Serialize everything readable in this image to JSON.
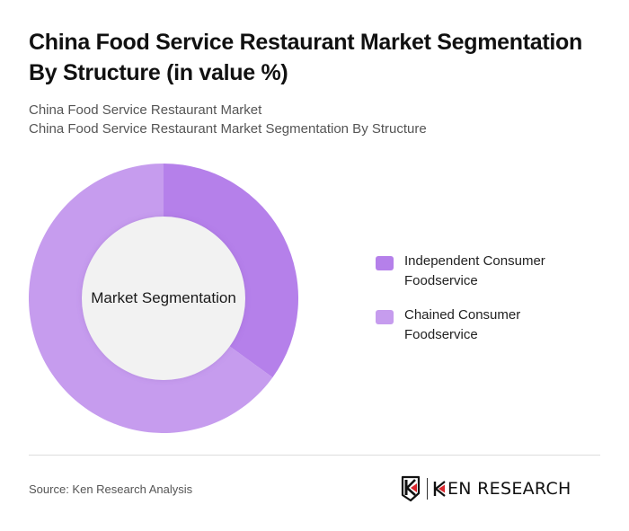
{
  "header": {
    "title": "China Food Service Restaurant Market Segmentation By Structure (in value %)",
    "subtitle_line1": "China Food Service Restaurant Market",
    "subtitle_line2": "China Food Service Restaurant Market Segmentation By Structure"
  },
  "chart": {
    "center_label": "Market Segmentation"
  },
  "legend": [
    {
      "label": "Independent Consumer Foodservice",
      "color": "#b580ea"
    },
    {
      "label": "Chained Consumer Foodservice",
      "color": "#c69cee"
    }
  ],
  "footer": {
    "source": "Source: Ken Research Analysis",
    "logo_text": "KEN RESEARCH"
  },
  "colors": {
    "independent": "#b580ea",
    "chained": "#c69cee",
    "center_fill": "#f2f2f2",
    "logo_accent": "#d9252c"
  },
  "chart_data": {
    "type": "pie",
    "subtype": "donut",
    "title": "China Food Service Restaurant Market Segmentation By Structure (in value %)",
    "center_label": "Market Segmentation",
    "categories": [
      "Independent Consumer Foodservice",
      "Chained Consumer Foodservice"
    ],
    "values": [
      35,
      65
    ],
    "colors": [
      "#b580ea",
      "#c69cee"
    ],
    "start_angle": "12 o'clock, clockwise",
    "legend_position": "right"
  }
}
